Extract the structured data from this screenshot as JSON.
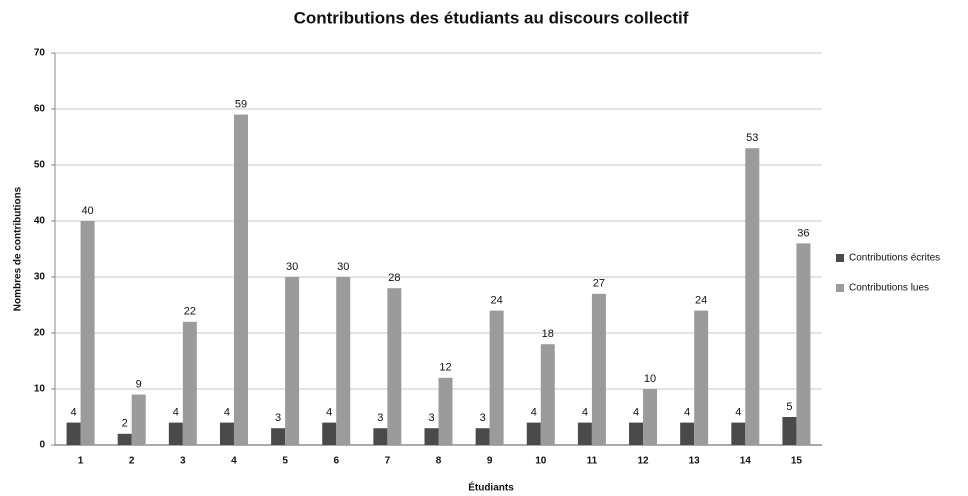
{
  "chart_data": {
    "type": "bar",
    "title": "Contributions des étudiants au discours collectif",
    "x_label": "Étudiants",
    "y_label": "Nombres de contributions",
    "categories": [
      "1",
      "2",
      "3",
      "4",
      "5",
      "6",
      "7",
      "8",
      "9",
      "10",
      "11",
      "12",
      "13",
      "14",
      "15"
    ],
    "series": [
      {
        "name": "Contributions écrites",
        "color": "#4a4a4a",
        "values": [
          4,
          2,
          4,
          4,
          3,
          4,
          3,
          3,
          3,
          4,
          4,
          4,
          4,
          4,
          5
        ]
      },
      {
        "name": "Contributions lues",
        "color": "#9b9b9b",
        "values": [
          40,
          9,
          22,
          59,
          30,
          30,
          28,
          12,
          24,
          18,
          27,
          10,
          24,
          53,
          36
        ]
      }
    ],
    "ylim": [
      0,
      70
    ],
    "yticks": [
      0,
      10,
      20,
      30,
      40,
      50,
      60,
      70
    ],
    "grid": true,
    "legend": "right"
  }
}
